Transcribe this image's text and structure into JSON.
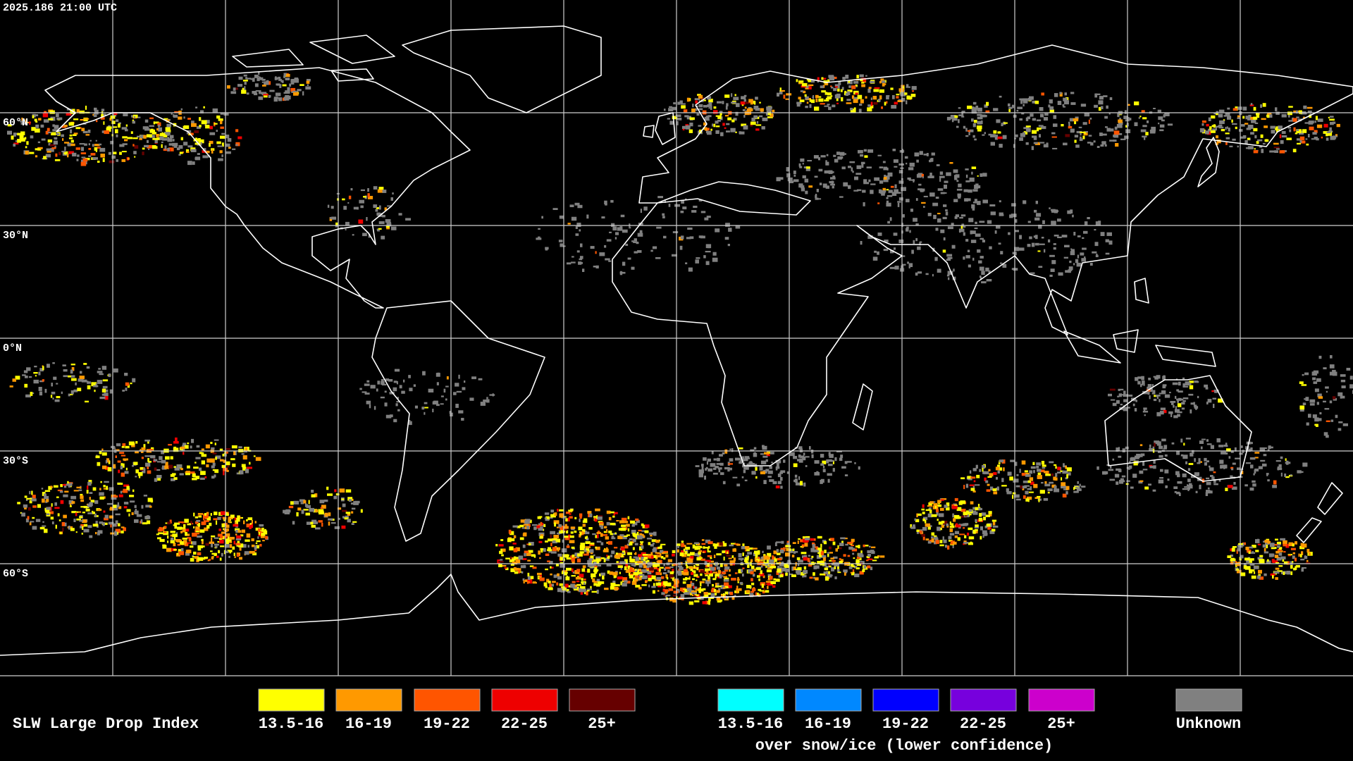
{
  "header": {
    "timestamp": "2025.186 21:00 UTC"
  },
  "map": {
    "lat_labels": [
      "60°N",
      "30°N",
      "0°N",
      "30°S",
      "60°S"
    ]
  },
  "legend": {
    "title": "SLW Large Drop Index",
    "groups": [
      {
        "items": [
          {
            "label": "13.5-16",
            "color": "#ffff00"
          },
          {
            "label": "16-19",
            "color": "#ff9900"
          },
          {
            "label": "19-22",
            "color": "#ff5500"
          },
          {
            "label": "22-25",
            "color": "#ee0000"
          },
          {
            "label": "25+",
            "color": "#660000"
          }
        ]
      },
      {
        "caption": "over snow/ice (lower confidence)",
        "items": [
          {
            "label": "13.5-16",
            "color": "#00ffff"
          },
          {
            "label": "16-19",
            "color": "#0088ff"
          },
          {
            "label": "19-22",
            "color": "#0000ff"
          },
          {
            "label": "22-25",
            "color": "#7700dd"
          },
          {
            "label": "25+",
            "color": "#cc00cc"
          }
        ]
      },
      {
        "items": [
          {
            "label": "Unknown",
            "color": "#808080"
          }
        ]
      }
    ]
  }
}
